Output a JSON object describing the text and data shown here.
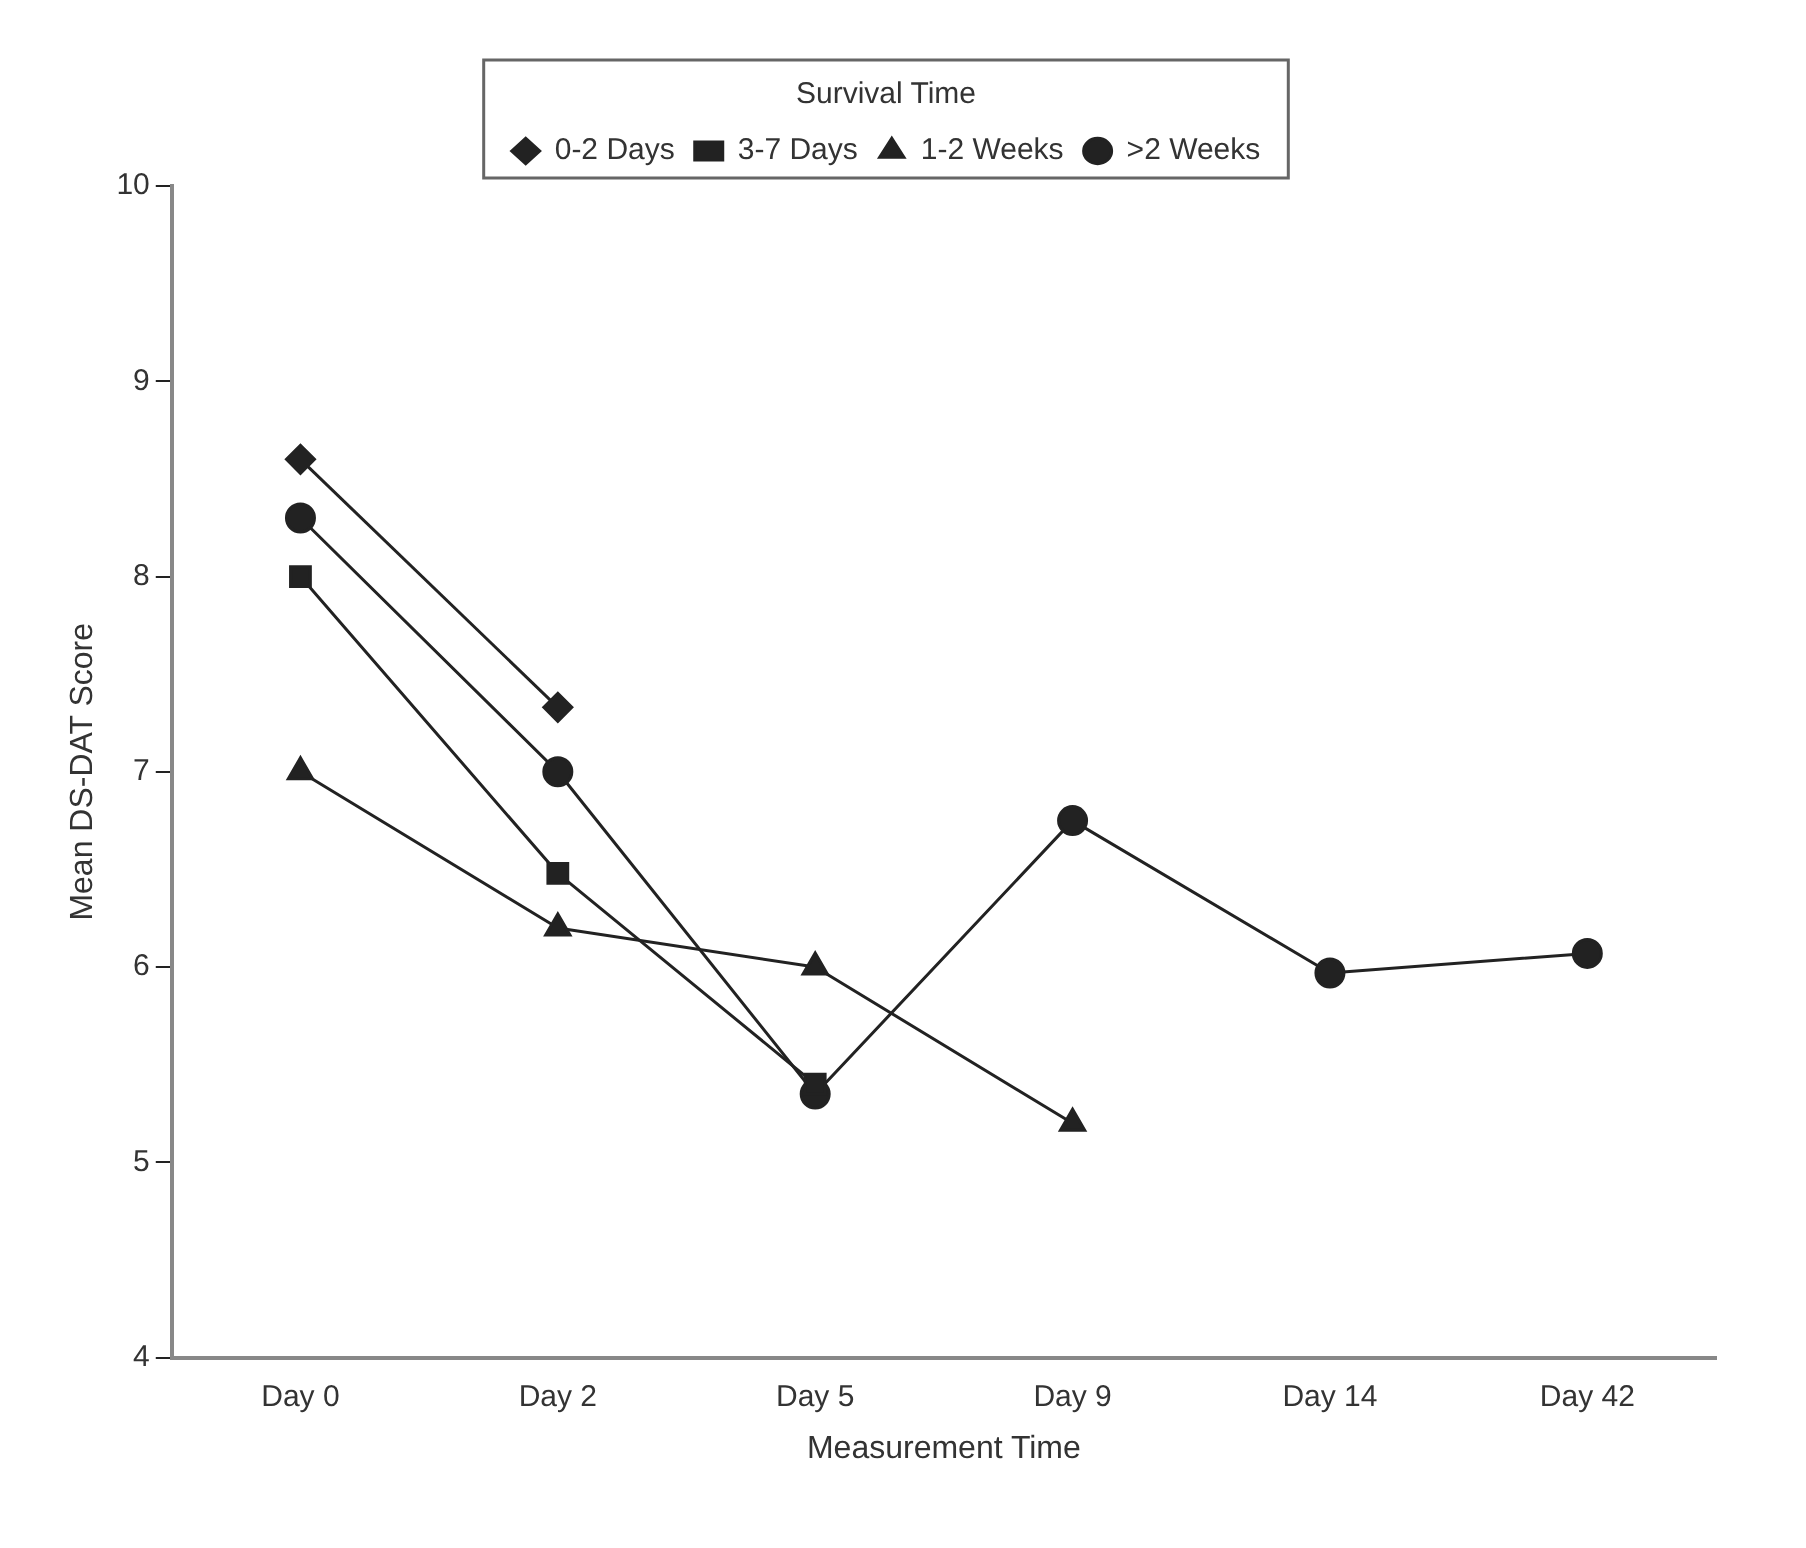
{
  "chart_data": {
    "type": "line",
    "xlabel": "Measurement Time",
    "ylabel": "Mean DS-DAT Score",
    "legend_title": "Survival Time",
    "legend": "top",
    "grid": false,
    "categories": [
      "Day 0",
      "Day 2",
      "Day 5",
      "Day 9",
      "Day 14",
      "Day 42"
    ],
    "ylim": [
      4,
      10
    ],
    "yticks": [
      4,
      5,
      6,
      7,
      8,
      9,
      10
    ],
    "series": [
      {
        "name": "0-2 Days",
        "color": "#222222",
        "marker": "diamond",
        "values": [
          8.6,
          7.33,
          null,
          null,
          null,
          null
        ]
      },
      {
        "name": "3-7 Days",
        "color": "#222222",
        "marker": "square",
        "values": [
          8.0,
          6.48,
          5.4,
          null,
          null,
          null
        ]
      },
      {
        "name": "1-2 Weeks",
        "color": "#222222",
        "marker": "triangle",
        "values": [
          7.0,
          6.2,
          6.0,
          5.2,
          null,
          null
        ]
      },
      {
        "name": ">2 Weeks",
        "color": "#222222",
        "marker": "circle",
        "values": [
          8.3,
          7.0,
          5.35,
          6.75,
          5.97,
          6.07
        ]
      }
    ]
  }
}
